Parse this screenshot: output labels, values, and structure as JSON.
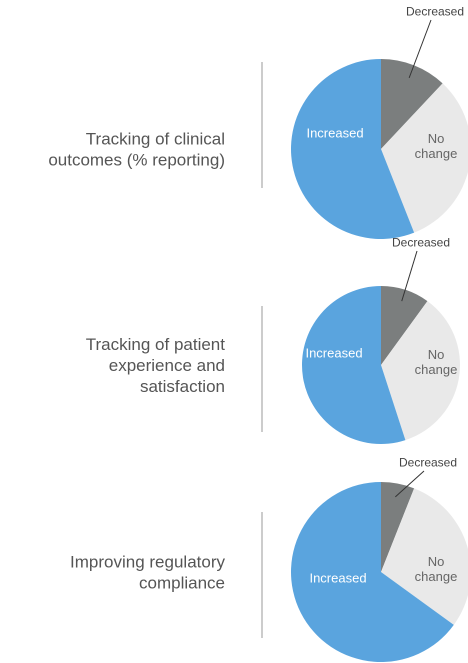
{
  "chart_data": [
    {
      "type": "pie",
      "title": [
        "Tracking of clinical",
        "outcomes (% reporting)"
      ],
      "categories": [
        "Decreased",
        "No change",
        "Increased"
      ],
      "values": [
        12,
        32,
        56
      ],
      "colors": [
        "#7b7e7e",
        "#e9e9e9",
        "#5aa4de"
      ]
    },
    {
      "type": "pie",
      "title": [
        "Tracking of patient",
        "experience and",
        "satisfaction"
      ],
      "categories": [
        "Decreased",
        "No change",
        "Increased"
      ],
      "values": [
        10,
        35,
        55
      ],
      "colors": [
        "#7b7e7e",
        "#e9e9e9",
        "#5aa4de"
      ]
    },
    {
      "type": "pie",
      "title": [
        "Improving regulatory",
        "compliance"
      ],
      "categories": [
        "Decreased",
        "No change",
        "Increased"
      ],
      "values": [
        6,
        29,
        65
      ],
      "colors": [
        "#7b7e7e",
        "#e9e9e9",
        "#5aa4de"
      ]
    }
  ]
}
